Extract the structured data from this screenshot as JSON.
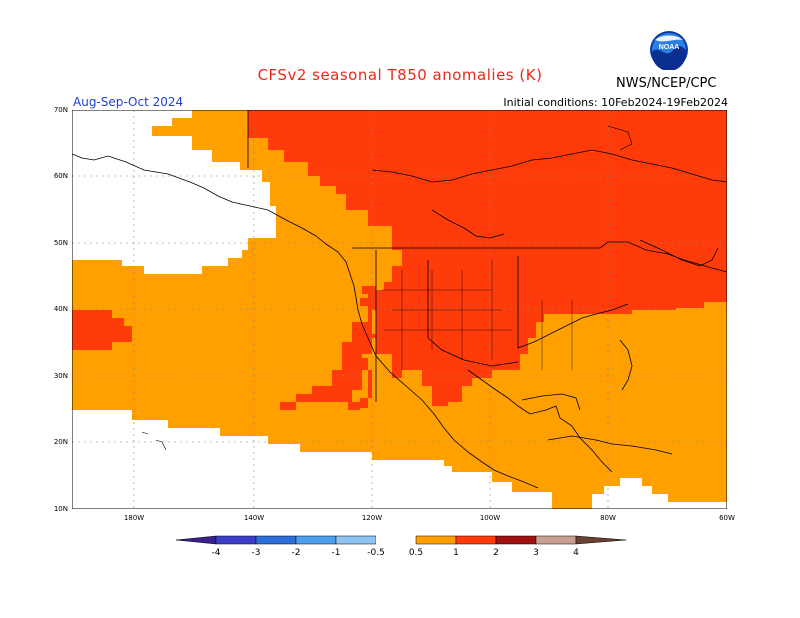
{
  "title": "CFSv2 seasonal T850 anomalies (K)",
  "agency": "NWS/NCEP/CPC",
  "logo_text": "NOAA",
  "period": "Aug-Sep-Oct 2024",
  "initial_conditions": "Initial conditions: 10Feb2024-19Feb2024",
  "lat_labels": [
    "70N",
    "60N",
    "50N",
    "40N",
    "30N",
    "20N",
    "10N"
  ],
  "lon_labels": [
    "180W",
    "140W",
    "120W",
    "100W",
    "80W",
    "60W"
  ],
  "colorbar": {
    "labels": [
      "-4",
      "-3",
      "-2",
      "-1",
      "-0.5",
      "0.5",
      "1",
      "2",
      "3",
      "4"
    ],
    "colors": [
      "#3b1f8f",
      "#3b3fc7",
      "#2d6fd9",
      "#4aa0ee",
      "#8ec4f2",
      "#ffffff",
      "#ffa000",
      "#ff3b0a",
      "#a01010",
      "#c8a090",
      "#6a4030"
    ]
  },
  "legend_classes": {
    "0.5_to_1": "#ffa000",
    "1_to_2": "#ff3b0a",
    "none": "#ffffff"
  }
}
